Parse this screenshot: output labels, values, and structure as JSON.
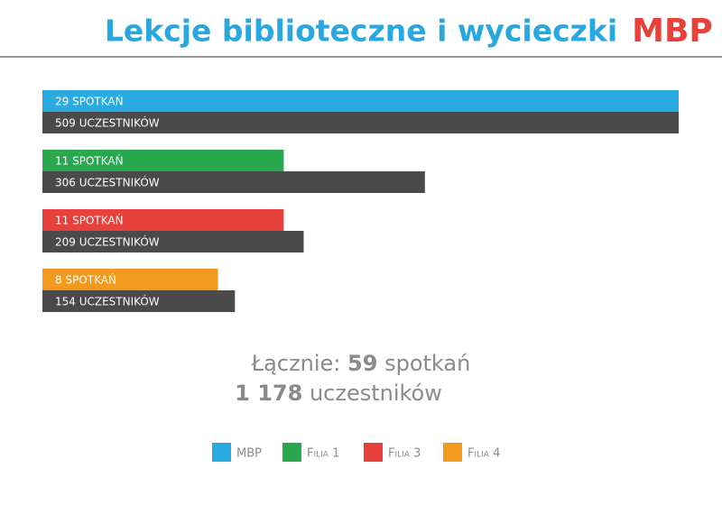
{
  "chart_data": {
    "type": "bar",
    "title": "Lekcje biblioteczne  i wycieczki",
    "logo": "MBP",
    "categories": [
      "MBP",
      "Filia 1",
      "Filia 3",
      "Filia 4"
    ],
    "colors": [
      "#29abe2",
      "#2aa84f",
      "#e8413c",
      "#f39a1e"
    ],
    "series": [
      {
        "values": [
          29,
          11,
          11,
          8
        ],
        "value_labels": [
          "29 SPOTKAŃ",
          "11 SPOTKAŃ",
          "11 SPOTKAŃ",
          "8 SPOTKAŃ"
        ]
      },
      {
        "color": "#4a4a4a",
        "values": [
          509,
          306,
          209,
          154
        ],
        "value_labels": [
          "509 UCZESTNIKÓW",
          "306 UCZESTNIKÓW",
          "209 UCZESTNIKÓW",
          "154 UCZESTNIKÓW"
        ]
      }
    ],
    "total": {
      "label": "Łącznie:",
      "meetings": 59,
      "meetings_unit": "spotkań",
      "participants": {
        "value": 1178,
        "label": "1 178"
      },
      "participants_unit": "uczestników"
    }
  }
}
